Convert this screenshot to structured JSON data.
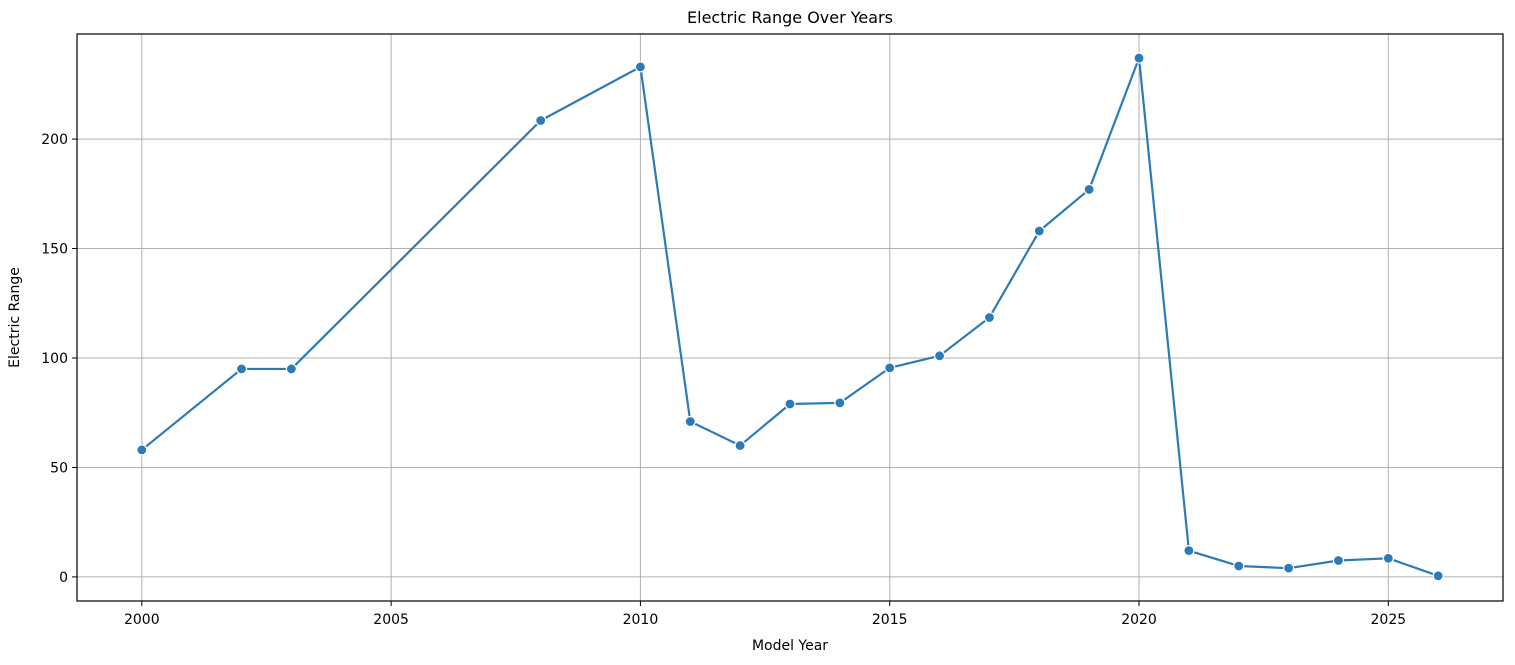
{
  "chart_data": {
    "type": "line",
    "title": "Electric Range Over Years",
    "xlabel": "Model Year",
    "ylabel": "Electric Range",
    "xlim": [
      1998.7,
      2027.3
    ],
    "ylim": [
      -11,
      248
    ],
    "xticks": [
      2000,
      2005,
      2010,
      2015,
      2020,
      2025
    ],
    "yticks": [
      0,
      50,
      100,
      150,
      200
    ],
    "grid": true,
    "color": "#2c7bb6",
    "series": [
      {
        "x": [
          2000,
          2002,
          2003,
          2008,
          2010,
          2011,
          2012,
          2013,
          2014,
          2015,
          2016,
          2017,
          2018,
          2019,
          2020,
          2021,
          2022,
          2023,
          2024,
          2025,
          2026
        ],
        "y": [
          58,
          95,
          95,
          208.5,
          233,
          71,
          60,
          79,
          79.5,
          95.5,
          101,
          118.5,
          158,
          177,
          237,
          12,
          5,
          4,
          7.5,
          8.5,
          0.5
        ]
      }
    ]
  }
}
